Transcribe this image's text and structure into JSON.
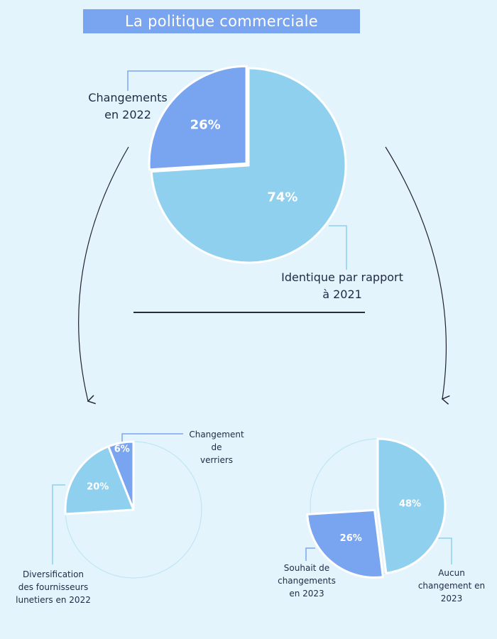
{
  "header": {
    "title": "La politique commerciale"
  },
  "colors": {
    "background": "#e4f4fd",
    "banner": "#79a5f0",
    "dark_blue": "#79a5f0",
    "light_blue": "#8fd0ef",
    "outline": "#bfe6f3",
    "connector_dark": "#79a5f0",
    "connector_light": "#8fd0ef"
  },
  "chart_data": [
    {
      "type": "pie",
      "slices": [
        {
          "label": "Changements en 2022",
          "value": 26,
          "value_label": "26%",
          "color": "#79a5f0"
        },
        {
          "label": "Identique par rapport à 2021",
          "value": 74,
          "value_label": "74%",
          "color": "#8fd0ef"
        }
      ]
    },
    {
      "type": "pie",
      "slices": [
        {
          "label": "Changement de verriers",
          "value": 6,
          "value_label": "6%",
          "color": "#79a5f0"
        },
        {
          "label": "Diversification des fournisseurs lunetiers en 2022",
          "value": 20,
          "value_label": "20%",
          "color": "#8fd0ef"
        }
      ]
    },
    {
      "type": "pie",
      "slices": [
        {
          "label": "Aucun changement en 2023",
          "value": 48,
          "value_label": "48%",
          "color": "#8fd0ef"
        },
        {
          "label": "Souhait de changements en 2023",
          "value": 26,
          "value_label": "26%",
          "color": "#79a5f0"
        }
      ]
    }
  ],
  "labels": {
    "main_left_l1": "Changements",
    "main_left_l2": "en 2022",
    "main_right_l1": "Identique par rapport",
    "main_right_l2": "à 2021",
    "left_top_l1": "Changement",
    "left_top_l2": "de",
    "left_top_l3": "verriers",
    "left_bottom_l1": "Diversification",
    "left_bottom_l2": "des fournisseurs",
    "left_bottom_l3": "lunetiers en 2022",
    "right_left_l1": "Souhait de",
    "right_left_l2": "changements",
    "right_left_l3": "en 2023",
    "right_right_l1": "Aucun",
    "right_right_l2": "changement en",
    "right_right_l3": "2023"
  }
}
